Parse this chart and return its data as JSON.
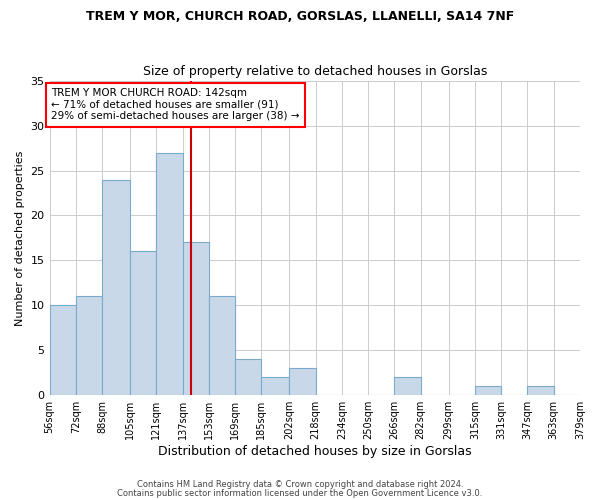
{
  "title": "TREM Y MOR, CHURCH ROAD, GORSLAS, LLANELLI, SA14 7NF",
  "subtitle": "Size of property relative to detached houses in Gorslas",
  "xlabel": "Distribution of detached houses by size in Gorslas",
  "ylabel": "Number of detached properties",
  "bar_color": "#c8d8e8",
  "bar_edge_color": "#7aabcc",
  "background_color": "#ffffff",
  "grid_color": "#cccccc",
  "vline_x": 142,
  "vline_color": "#cc0000",
  "bin_edges": [
    56,
    72,
    88,
    105,
    121,
    137,
    153,
    169,
    185,
    202,
    218,
    234,
    250,
    266,
    282,
    299,
    315,
    331,
    347,
    363,
    379
  ],
  "bin_counts": [
    10,
    11,
    24,
    16,
    27,
    17,
    11,
    4,
    2,
    3,
    0,
    0,
    0,
    2,
    0,
    0,
    1,
    0,
    1,
    0
  ],
  "tick_labels": [
    "56sqm",
    "72sqm",
    "88sqm",
    "105sqm",
    "121sqm",
    "137sqm",
    "153sqm",
    "169sqm",
    "185sqm",
    "202sqm",
    "218sqm",
    "234sqm",
    "250sqm",
    "266sqm",
    "282sqm",
    "299sqm",
    "315sqm",
    "331sqm",
    "347sqm",
    "363sqm",
    "379sqm"
  ],
  "ylim": [
    0,
    35
  ],
  "yticks": [
    0,
    5,
    10,
    15,
    20,
    25,
    30,
    35
  ],
  "annotation_title": "TREM Y MOR CHURCH ROAD: 142sqm",
  "annotation_line1": "← 71% of detached houses are smaller (91)",
  "annotation_line2": "29% of semi-detached houses are larger (38) →",
  "footnote1": "Contains HM Land Registry data © Crown copyright and database right 2024.",
  "footnote2": "Contains public sector information licensed under the Open Government Licence v3.0."
}
